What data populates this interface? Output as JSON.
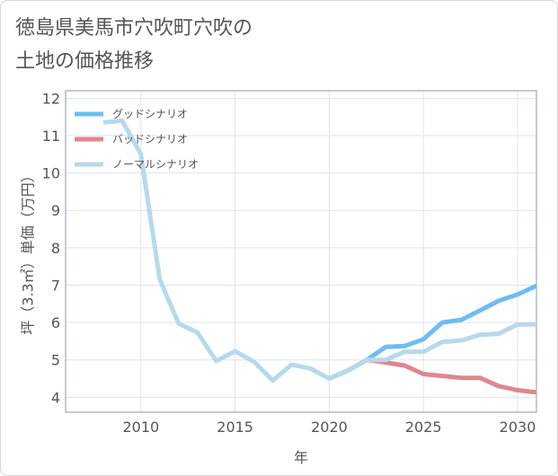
{
  "title_lines": [
    "徳島県美馬市穴吹町穴吹の",
    "土地の価格推移"
  ],
  "colors": {
    "good": "#6dbdf0",
    "bad": "#e0868f",
    "normal": "#b7d9ea",
    "grid": "#dde5ea",
    "frame": "#8c9aa6",
    "text": "#555555"
  },
  "chart_data": {
    "type": "line",
    "xlabel": "年",
    "ylabel": "坪（3.3㎡）単価（万円）",
    "xlim": [
      2006,
      2031
    ],
    "ylim": [
      3.6,
      12.2
    ],
    "x_ticks": [
      2010,
      2015,
      2020,
      2025,
      2030
    ],
    "y_ticks": [
      4,
      5,
      6,
      7,
      8,
      9,
      10,
      11,
      12
    ],
    "grid": true,
    "legend_position": "top-left",
    "series": [
      {
        "name": "グッドシナリオ",
        "color": "#6dbdf0",
        "x": [
          2020,
          2021,
          2022,
          2023,
          2024,
          2025,
          2026,
          2027,
          2028,
          2029,
          2030,
          2031
        ],
        "y": [
          4.5,
          4.72,
          5.0,
          5.35,
          5.37,
          5.55,
          6.0,
          6.07,
          6.32,
          6.58,
          6.75,
          6.98
        ]
      },
      {
        "name": "バッドシナリオ",
        "color": "#e0868f",
        "x": [
          2020,
          2021,
          2022,
          2023,
          2024,
          2025,
          2026,
          2027,
          2028,
          2029,
          2030,
          2031
        ],
        "y": [
          4.5,
          4.72,
          5.0,
          4.93,
          4.85,
          4.62,
          4.57,
          4.52,
          4.52,
          4.3,
          4.19,
          4.13
        ]
      },
      {
        "name": "ノーマルシナリオ",
        "color": "#b7d9ea",
        "x": [
          2008,
          2009,
          2010,
          2011,
          2012,
          2013,
          2014,
          2015,
          2016,
          2017,
          2018,
          2019,
          2020,
          2021,
          2022,
          2023,
          2024,
          2025,
          2026,
          2027,
          2028,
          2029,
          2030,
          2031
        ],
        "y": [
          11.35,
          11.4,
          10.5,
          7.15,
          5.97,
          5.73,
          4.97,
          5.23,
          4.95,
          4.45,
          4.87,
          4.77,
          4.5,
          4.72,
          5.0,
          5.0,
          5.22,
          5.22,
          5.48,
          5.52,
          5.67,
          5.7,
          5.95,
          5.95
        ]
      }
    ]
  }
}
